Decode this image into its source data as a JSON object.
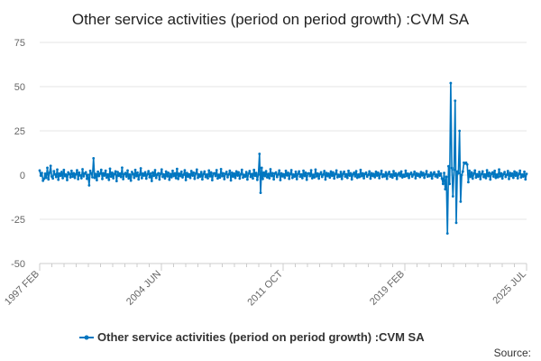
{
  "chart_data": {
    "type": "line",
    "title": "Other service activities (period on period growth) :CVM SA",
    "xlabel": "",
    "ylabel": "",
    "x_start": "1997 FEB",
    "x_end": "2025 JUL",
    "x_tick_labels": [
      "1997 FEB",
      "2004 JUN",
      "2011 OCT",
      "2019 FEB",
      "2025 JUL"
    ],
    "ylim": [
      -50,
      75
    ],
    "y_ticks": [
      75,
      50,
      25,
      0,
      -25,
      -50
    ],
    "grid": true,
    "legend_position": "bottom",
    "series": [
      {
        "name": "Other service activities (period on period growth) :CVM SA",
        "color": "#0076c0",
        "values": [
          2.6,
          -0.3,
          1.2,
          -3.2,
          -2.1,
          0.8,
          -1.5,
          4.1,
          -2.4,
          1.3,
          5.2,
          -0.8,
          -1.9,
          2.2,
          0.4,
          -1.1,
          3.1,
          -2.6,
          0.9,
          -0.4,
          1.8,
          -1.7,
          2.9,
          -0.6,
          0.3,
          -2.8,
          1.5,
          0.7,
          -1.3,
          2.4,
          -0.9,
          1.1,
          -1.6,
          0.5,
          2.7,
          -2.3,
          1.4,
          -0.2,
          -1.8,
          3.3,
          -0.7,
          0.9,
          1.6,
          -2.1,
          0.2,
          -5.8,
          2.4,
          1.0,
          -1.2,
          9.5,
          -1.6,
          0.6,
          -2.9,
          1.9,
          -0.5,
          0.8,
          3.0,
          -2.2,
          1.1,
          -0.3,
          2.5,
          -1.4,
          0.4,
          -2.7,
          3.6,
          -0.9,
          1.3,
          -1.8,
          0.6,
          2.1,
          -3.4,
          1.7,
          -0.4,
          0.9,
          -1.1,
          4.2,
          -2.3,
          0.5,
          1.2,
          -0.8,
          2.6,
          -1.9,
          0.3,
          -3.1,
          1.8,
          0.7,
          -1.5,
          2.9,
          -0.6,
          1.4,
          -2.4,
          0.2,
          3.8,
          -1.7,
          0.8,
          -0.3,
          1.6,
          -2.0,
          0.5,
          2.2,
          -1.2,
          0.9,
          -3.3,
          1.5,
          -0.4,
          2.8,
          -1.6,
          0.3,
          1.1,
          -2.5,
          0.7,
          3.2,
          -1.0,
          0.4,
          -1.9,
          2.0,
          -0.7,
          1.3,
          -2.6,
          0.6,
          -1.2,
          2.4,
          -0.5,
          1.0,
          -1.7,
          3.5,
          -2.2,
          0.8,
          -0.6,
          1.9,
          -1.3,
          0.2,
          2.7,
          -2.8,
          1.2,
          -0.9,
          0.5,
          -1.6,
          2.3,
          -0.3,
          1.4,
          -2.1,
          0.9,
          3.1,
          -1.5,
          0.4,
          -0.8,
          1.7,
          -2.4,
          0.6,
          2.0,
          -1.1,
          0.3,
          -1.8,
          2.6,
          -0.7,
          1.5,
          -2.9,
          0.8,
          1.1,
          -0.5,
          2.8,
          -1.9,
          0.2,
          -1.4,
          3.4,
          -0.6,
          1.0,
          -2.3,
          0.7,
          1.8,
          -1.2,
          0.4,
          2.5,
          -3.0,
          1.3,
          -0.8,
          0.9,
          -1.6,
          2.1,
          -0.3,
          1.6,
          -2.0,
          0.5,
          3.0,
          -1.4,
          0.2,
          -0.9,
          1.7,
          -2.5,
          0.8,
          2.3,
          -1.0,
          0.6,
          -1.9,
          2.9,
          -0.4,
          1.2,
          -2.7,
          0.3,
          12.0,
          -10.0,
          4.1,
          -2.2,
          1.4,
          -0.6,
          2.2,
          -1.3,
          0.7,
          -1.8,
          3.3,
          -0.5,
          1.1,
          -2.4,
          0.9,
          1.5,
          -1.1,
          0.4,
          2.6,
          -2.8,
          1.0,
          -0.7,
          0.5,
          -1.5,
          2.4,
          -0.2,
          1.3,
          -2.1,
          0.6,
          2.8,
          -1.6,
          0.3,
          -0.8,
          1.9,
          -2.3,
          0.7,
          2.1,
          -0.9,
          0.4,
          -1.7,
          2.5,
          -0.5,
          1.4,
          -2.6,
          0.8,
          1.0,
          -0.6,
          2.7,
          -1.8,
          0.2,
          -1.3,
          3.1,
          -0.7,
          0.9,
          -2.0,
          0.5,
          1.6,
          -1.0,
          0.3,
          2.3,
          -2.5,
          1.2,
          -0.6,
          0.8,
          -1.4,
          2.0,
          -0.4,
          1.5,
          -1.9,
          0.6,
          2.6,
          -1.2,
          0.2,
          -0.9,
          1.8,
          -2.2,
          0.7,
          1.9,
          -0.8,
          0.5,
          -1.6,
          2.4,
          -0.3,
          1.1,
          -2.4,
          0.4,
          1.3,
          -0.7,
          2.2,
          -1.5,
          0.3,
          -1.1,
          2.9,
          -0.6,
          1.0,
          -1.8,
          0.6,
          1.4,
          -0.9,
          0.2,
          2.1,
          -2.0,
          1.1,
          -0.5,
          0.7,
          -1.2,
          1.9,
          -0.3,
          1.3,
          -1.7,
          0.5,
          2.4,
          -1.0,
          0.3,
          -0.7,
          1.6,
          -2.1,
          0.6,
          1.8,
          -0.8,
          0.4,
          -1.4,
          2.2,
          -0.4,
          1.0,
          -2.2,
          0.3,
          1.2,
          -0.6,
          2.0,
          -1.3,
          0.2,
          -0.9,
          2.5,
          -0.5,
          0.8,
          -1.6,
          0.5,
          1.3,
          -0.8,
          0.3,
          1.9,
          -1.8,
          1.0,
          -0.4,
          0.6,
          -1.1,
          1.7,
          -0.2,
          1.2,
          -1.5,
          0.4,
          2.2,
          -0.9,
          0.2,
          -0.6,
          1.4,
          -1.9,
          0.5,
          1.6,
          -0.7,
          0.3,
          -1.3,
          2.0,
          -0.3,
          0.9,
          -2.0,
          -5.0,
          1.2,
          -8.0,
          -1.0,
          -33.0,
          5.0,
          -5.0,
          52.0,
          4.0,
          -12.0,
          3.0,
          42.0,
          -27.0,
          2.0,
          1.0,
          25.0,
          -15.0,
          0.0,
          2.0,
          7.0,
          6.5,
          7.0,
          6.0,
          -4.0,
          2.5,
          -1.0,
          1.5,
          -2.0,
          0.8,
          2.6,
          -1.4,
          0.5,
          -0.9,
          1.8,
          -2.3,
          0.6,
          2.1,
          -1.1,
          0.4,
          -1.7,
          2.7,
          -0.6,
          1.3,
          -2.5,
          0.7,
          1.5,
          -0.8,
          2.4,
          -1.6,
          0.3,
          -1.2,
          3.2,
          -0.7,
          1.0,
          -1.9,
          0.5,
          1.7,
          -1.0,
          0.2,
          2.3,
          -2.2,
          1.2,
          -0.5,
          0.9,
          -1.5,
          2.0,
          -0.4,
          1.4,
          -1.8,
          0.6,
          2.5,
          -1.3,
          0.3,
          -0.8,
          1.9,
          -2.4,
          0.7
        ]
      }
    ]
  },
  "legend": {
    "label": "Other service activities (period on period growth) :CVM SA"
  },
  "source_label": "Source:"
}
